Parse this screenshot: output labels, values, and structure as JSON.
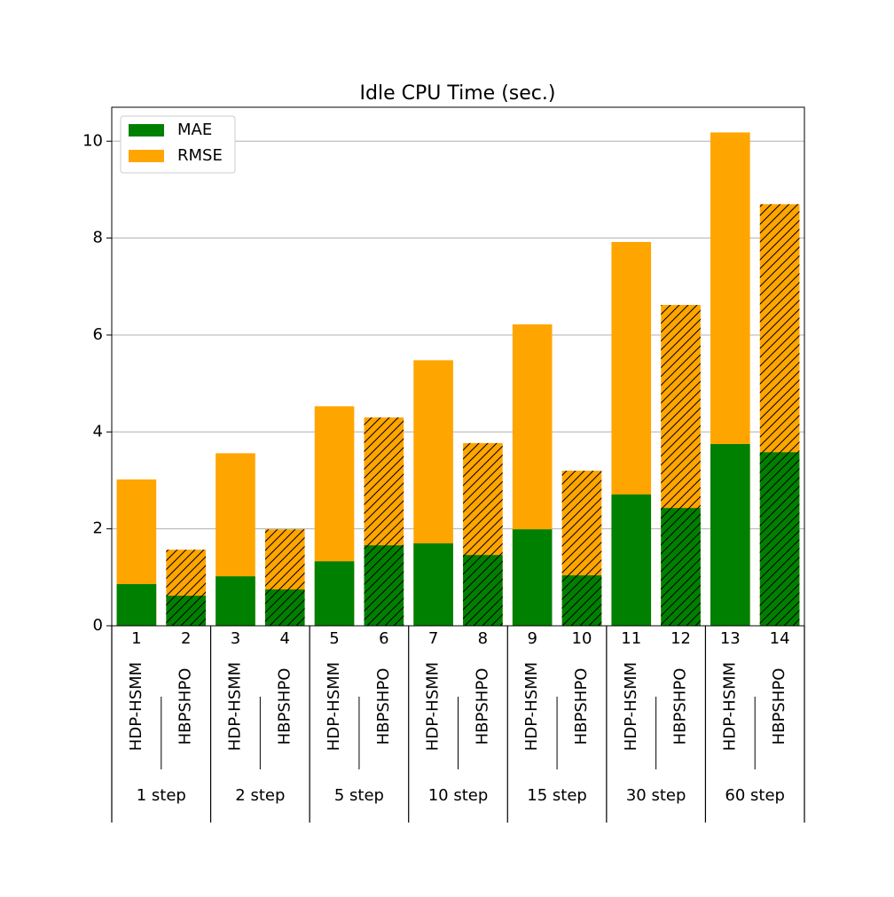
{
  "chart_data": {
    "type": "bar",
    "title": "Idle CPU Time (sec.)",
    "categories": [
      "1",
      "2",
      "3",
      "4",
      "5",
      "6",
      "7",
      "8",
      "9",
      "10",
      "11",
      "12",
      "13",
      "14"
    ],
    "methods": [
      "HDP-HSMM",
      "HBPSHPO",
      "HDP-HSMM",
      "HBPSHPO",
      "HDP-HSMM",
      "HBPSHPO",
      "HDP-HSMM",
      "HBPSHPO",
      "HDP-HSMM",
      "HBPSHPO",
      "HDP-HSMM",
      "HBPSHPO",
      "HDP-HSMM",
      "HBPSHPO"
    ],
    "groups": [
      "1 step",
      "2 step",
      "5 step",
      "10 step",
      "15 step",
      "30 step",
      "60 step"
    ],
    "hatch_method": "HBPSHPO",
    "series": [
      {
        "name": "MAE",
        "color": "#008000",
        "values": [
          0.86,
          0.62,
          1.02,
          0.75,
          1.33,
          1.66,
          1.7,
          1.46,
          1.99,
          1.04,
          2.71,
          2.43,
          3.75,
          3.58
        ]
      },
      {
        "name": "RMSE",
        "color": "#ffa500",
        "values": [
          3.02,
          1.57,
          3.56,
          1.99,
          4.53,
          4.3,
          5.48,
          3.77,
          6.22,
          3.2,
          7.92,
          6.62,
          10.18,
          8.7
        ]
      }
    ],
    "ylim": [
      0,
      10.7
    ],
    "yticks": [
      0,
      2,
      4,
      6,
      8,
      10
    ],
    "grid": true,
    "legend": "upper left"
  }
}
